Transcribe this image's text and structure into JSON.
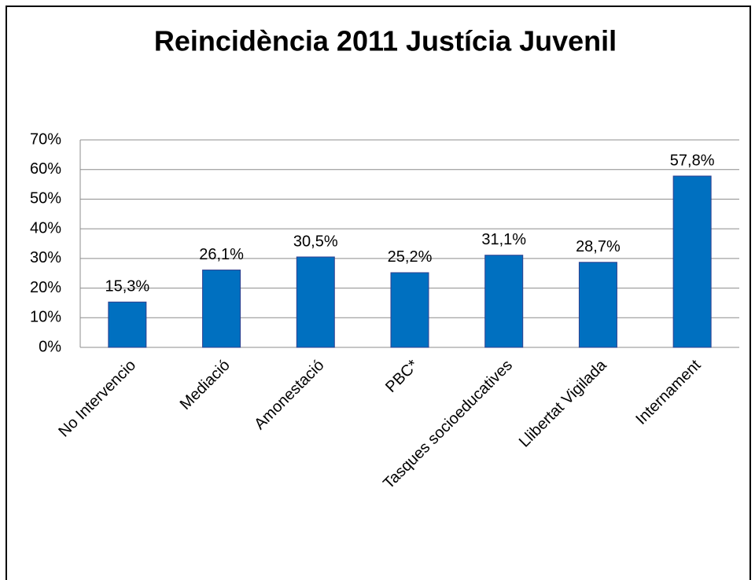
{
  "chart_data": {
    "type": "bar",
    "title": "Reincidència 2011 Justícia Juvenil",
    "categories": [
      "No Intervencio",
      "Mediació",
      "Amonestació",
      "PBC*",
      "Tasques socioeducatives",
      "Llibertat Vigilada",
      "Internament"
    ],
    "values": [
      15.3,
      26.1,
      30.5,
      25.2,
      31.1,
      28.7,
      57.8
    ],
    "value_labels": [
      "15,3%",
      "26,1%",
      "30,5%",
      "25,2%",
      "31,1%",
      "28,7%",
      "57,8%"
    ],
    "color": "#0070c0",
    "ylim": [
      0,
      70
    ],
    "yticks": [
      {
        "value": 0,
        "label": "0%"
      },
      {
        "value": 10,
        "label": "10%"
      },
      {
        "value": 20,
        "label": "20%"
      },
      {
        "value": 30,
        "label": "30%"
      },
      {
        "value": 40,
        "label": "40%"
      },
      {
        "value": 50,
        "label": "50%"
      },
      {
        "value": 60,
        "label": "60%"
      },
      {
        "value": 70,
        "label": "70%"
      }
    ],
    "grid": true
  }
}
